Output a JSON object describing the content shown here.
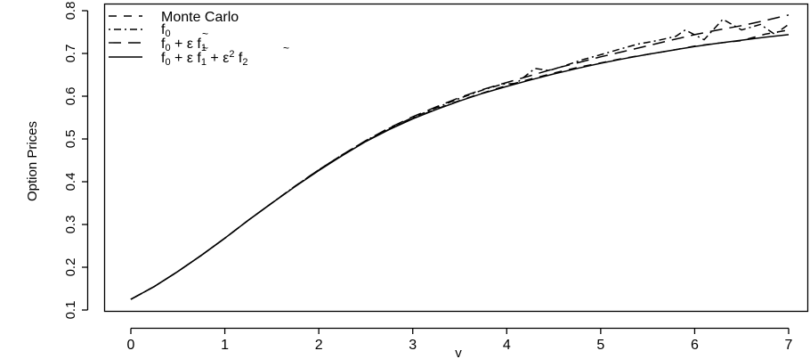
{
  "chart_data": {
    "type": "line",
    "title": "",
    "xlabel": "v",
    "ylabel": "Option Prices",
    "xlim": [
      0,
      7
    ],
    "ylim": [
      0.1,
      0.8
    ],
    "x_ticks": [
      0,
      1,
      2,
      3,
      4,
      5,
      6,
      7
    ],
    "x_tick_labels": [
      "0",
      "1",
      "2",
      "3",
      "4",
      "5",
      "6",
      "7"
    ],
    "y_ticks": [
      0.1,
      0.2,
      0.3,
      0.4,
      0.5,
      0.6,
      0.7,
      0.8
    ],
    "y_tick_labels": [
      "0.1",
      "0.2",
      "0.3",
      "0.4",
      "0.5",
      "0.6",
      "0.7",
      "0.8"
    ],
    "grid": false,
    "legend_position": "top-left",
    "series": [
      {
        "name": "Monte Carlo",
        "dash": "dashed",
        "x": [
          0,
          0.25,
          0.5,
          0.75,
          1,
          1.25,
          1.5,
          1.75,
          2,
          2.25,
          2.5,
          2.75,
          3,
          3.25,
          3.5,
          3.75,
          4,
          4.25,
          4.5,
          4.75,
          5,
          5.25,
          5.5,
          5.75,
          6,
          6.25,
          6.5,
          6.75,
          7
        ],
        "y": [
          0.125,
          0.155,
          0.19,
          0.228,
          0.268,
          0.31,
          0.35,
          0.39,
          0.427,
          0.462,
          0.495,
          0.523,
          0.548,
          0.57,
          0.59,
          0.608,
          0.625,
          0.64,
          0.654,
          0.667,
          0.678,
          0.689,
          0.698,
          0.707,
          0.717,
          0.724,
          0.73,
          0.745,
          0.755
        ]
      },
      {
        "name": "f0",
        "dash": "dotdash",
        "x": [
          0,
          0.25,
          0.5,
          0.75,
          1,
          1.25,
          1.5,
          1.75,
          2,
          2.25,
          2.5,
          2.75,
          3,
          3.25,
          3.5,
          3.75,
          3.95,
          4.1,
          4.3,
          4.45,
          4.6,
          4.8,
          5,
          5.2,
          5.4,
          5.6,
          5.8,
          5.9,
          6.1,
          6.3,
          6.5,
          6.7,
          6.85,
          7
        ],
        "y": [
          0.125,
          0.155,
          0.19,
          0.228,
          0.268,
          0.31,
          0.35,
          0.39,
          0.428,
          0.463,
          0.496,
          0.525,
          0.55,
          0.573,
          0.595,
          0.615,
          0.628,
          0.63,
          0.665,
          0.66,
          0.67,
          0.685,
          0.697,
          0.71,
          0.722,
          0.73,
          0.74,
          0.755,
          0.732,
          0.78,
          0.755,
          0.768,
          0.745,
          0.768
        ]
      },
      {
        "name": "f0 + ε f1",
        "dash": "longdash",
        "x": [
          0,
          0.25,
          0.5,
          0.75,
          1,
          1.25,
          1.5,
          1.75,
          2,
          2.25,
          2.5,
          2.75,
          3,
          3.25,
          3.5,
          3.75,
          4,
          4.25,
          4.5,
          4.75,
          5,
          5.25,
          5.5,
          5.75,
          6,
          6.25,
          6.5,
          6.75,
          7
        ],
        "y": [
          0.125,
          0.155,
          0.19,
          0.228,
          0.268,
          0.31,
          0.35,
          0.39,
          0.428,
          0.463,
          0.496,
          0.526,
          0.552,
          0.575,
          0.597,
          0.616,
          0.632,
          0.648,
          0.664,
          0.678,
          0.692,
          0.705,
          0.718,
          0.731,
          0.744,
          0.755,
          0.765,
          0.777,
          0.79
        ]
      },
      {
        "name": "f0 + ε f1 + ε² f2",
        "dash": "solid",
        "x": [
          0,
          0.25,
          0.5,
          0.75,
          1,
          1.25,
          1.5,
          1.75,
          2,
          2.25,
          2.5,
          2.75,
          3,
          3.25,
          3.5,
          3.75,
          4,
          4.25,
          4.5,
          4.75,
          5,
          5.25,
          5.5,
          5.75,
          6,
          6.25,
          6.5,
          6.75,
          7
        ],
        "y": [
          0.125,
          0.155,
          0.19,
          0.228,
          0.268,
          0.31,
          0.35,
          0.389,
          0.426,
          0.461,
          0.494,
          0.522,
          0.547,
          0.569,
          0.589,
          0.607,
          0.623,
          0.638,
          0.652,
          0.665,
          0.677,
          0.688,
          0.698,
          0.707,
          0.716,
          0.724,
          0.731,
          0.738,
          0.744
        ]
      }
    ]
  }
}
